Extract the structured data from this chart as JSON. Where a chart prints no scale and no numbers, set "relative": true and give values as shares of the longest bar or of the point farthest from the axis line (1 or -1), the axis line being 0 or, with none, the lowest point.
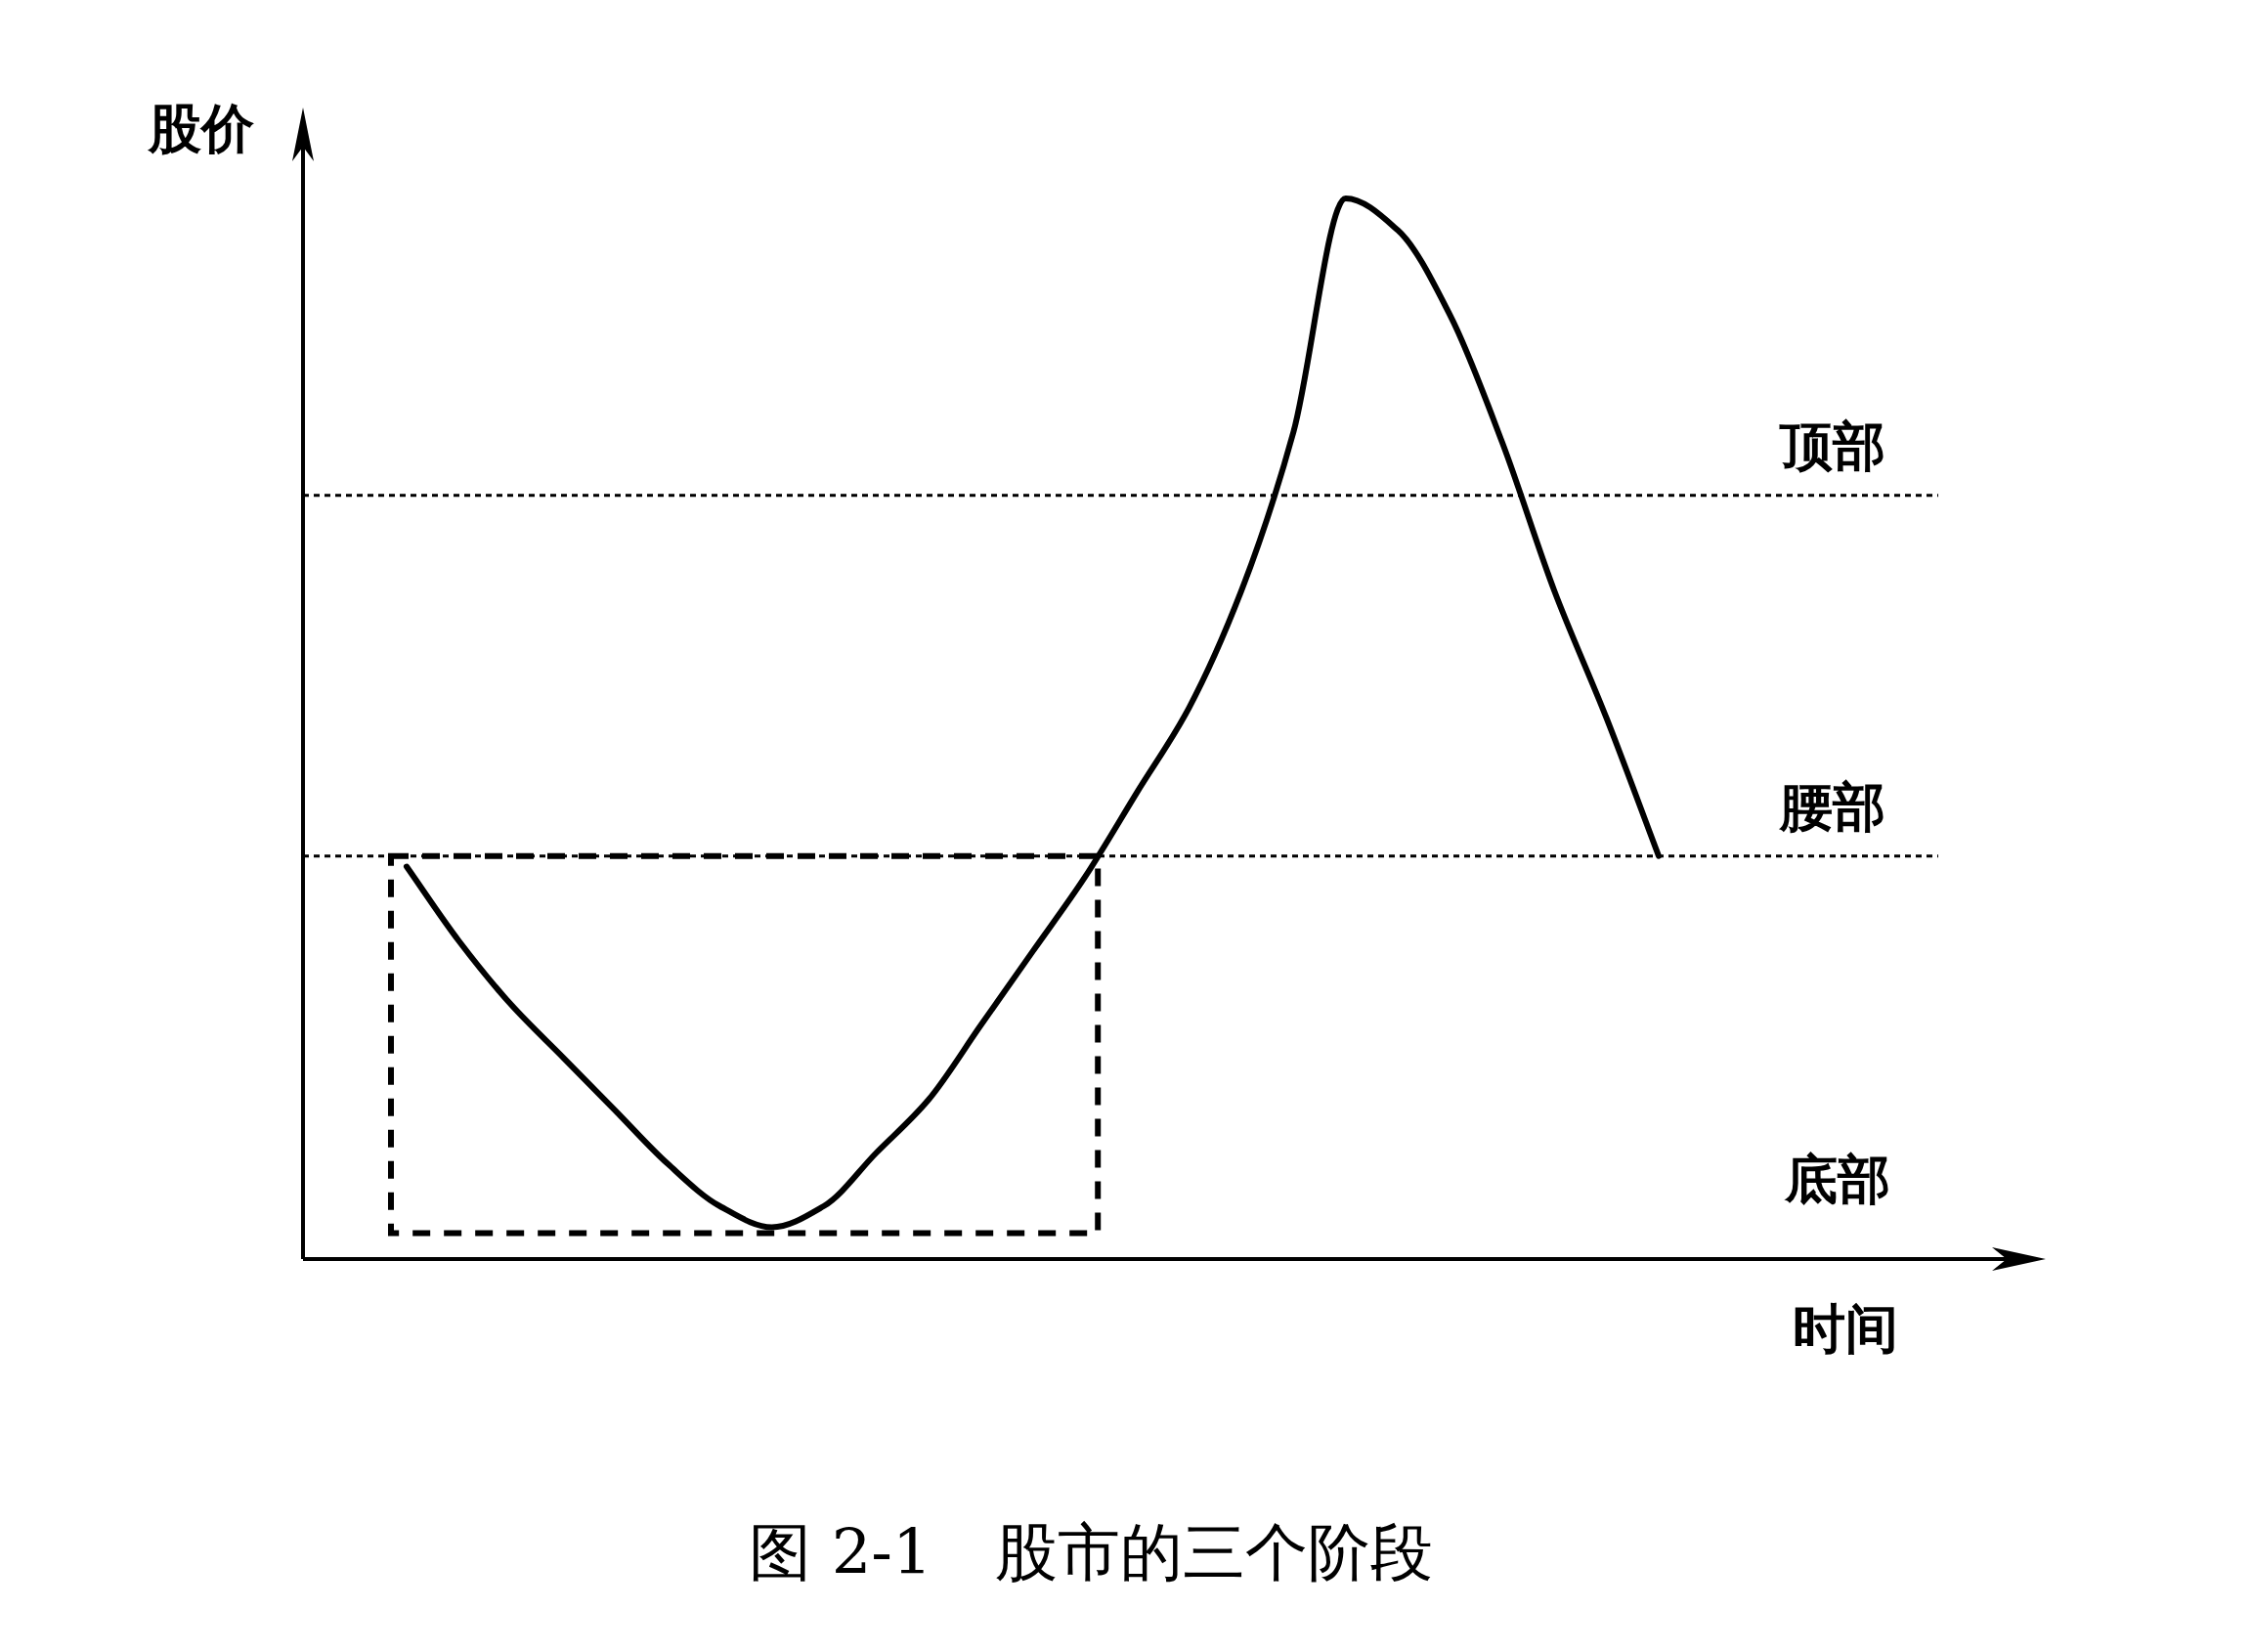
{
  "chart_data": {
    "type": "line",
    "relative": true,
    "title": "图 2-1　股市的三个阶段",
    "xlabel": "时间",
    "ylabel": "股价",
    "categories": [
      null,
      null,
      null,
      null,
      null,
      null,
      null,
      null,
      null,
      null,
      null,
      null,
      null,
      null,
      null,
      null,
      null,
      null,
      null,
      null,
      null,
      null,
      null,
      null,
      null
    ],
    "values": [
      0.37,
      0.3,
      0.24,
      0.19,
      0.14,
      0.09,
      0.05,
      0.03,
      0.05,
      0.1,
      0.15,
      0.22,
      0.29,
      0.36,
      0.44,
      0.52,
      0.63,
      0.78,
      1,
      0.97,
      0.89,
      0.77,
      0.63,
      0.51,
      0.38
    ],
    "color": "#000000",
    "line_style": "solid",
    "ref_lines": [
      {
        "axis": "y",
        "value": 0.72,
        "label": "顶部",
        "line_style": "dotted",
        "color": "#000000"
      },
      {
        "axis": "y",
        "value": 0.38,
        "label": "腰部",
        "line_style": "dotted",
        "color": "#000000"
      }
    ],
    "annotations": [
      "底部"
    ]
  }
}
